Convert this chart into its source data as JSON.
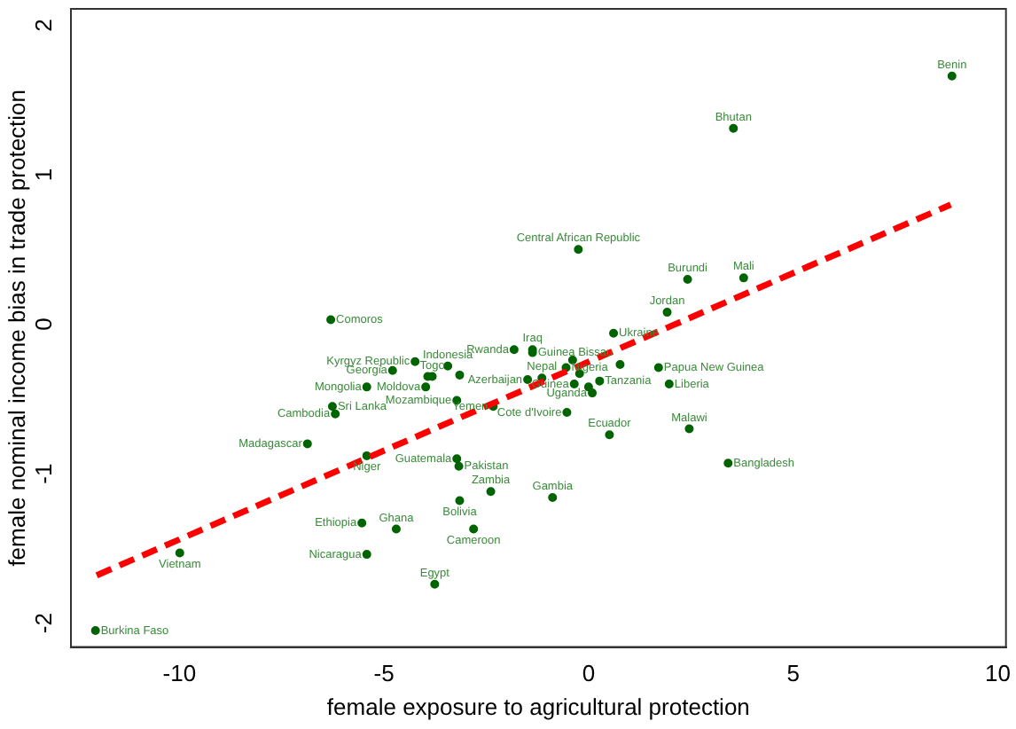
{
  "chart_data": {
    "type": "scatter",
    "xlabel": "female exposure to agricultural protection",
    "ylabel": "female nominal income bias in trade protection",
    "xlim": [
      -12.65,
      10.2
    ],
    "ylim": [
      -2.16,
      2.11
    ],
    "xticks": [
      -10,
      -5,
      0,
      5,
      10
    ],
    "yticks": [
      -2,
      -1,
      0,
      1,
      2
    ],
    "grid": false,
    "legend": false,
    "marker": "circle",
    "series": [
      {
        "type": "scatter",
        "color": "#006400",
        "x": [
          -12.05,
          -9.99,
          -6.3,
          -4.24,
          -4.79,
          -5.42,
          -6.26,
          -6.19,
          -6.87,
          -5.42,
          -5.54,
          -4.7,
          -5.42,
          -3.44,
          -3.82,
          -3.98,
          -3.22,
          -1.82,
          -1.37,
          -1.37,
          -1.14,
          -1.49,
          -2.33,
          -0.53,
          -0.55,
          -0.35,
          0.09,
          0.27,
          0.61,
          1.92,
          2.42,
          3.79,
          1.71,
          1.97,
          0.51,
          2.46,
          3.41,
          -3.22,
          -3.17,
          -2.39,
          -0.88,
          -3.15,
          -2.81,
          -3.76,
          8.88,
          3.54,
          -0.25,
          -3.93,
          -3.15,
          -0.39,
          -0.22,
          0.0,
          0.77
        ],
        "values": [
          -2.05,
          -1.53,
          0.03,
          -0.25,
          -0.31,
          -0.42,
          -0.55,
          -0.6,
          -0.8,
          -0.88,
          -1.33,
          -1.37,
          -1.54,
          -0.28,
          -0.35,
          -0.42,
          -0.51,
          -0.17,
          -0.17,
          -0.19,
          -0.36,
          -0.37,
          -0.55,
          -0.59,
          -0.29,
          -0.4,
          -0.46,
          -0.38,
          -0.06,
          0.08,
          0.3,
          0.31,
          -0.29,
          -0.4,
          -0.74,
          -0.7,
          -0.93,
          -0.9,
          -0.95,
          -1.12,
          -1.16,
          -1.18,
          -1.37,
          -1.74,
          1.66,
          1.31,
          0.5,
          -0.35,
          -0.34,
          -0.24,
          -0.33,
          -0.42,
          -0.27
        ]
      },
      {
        "type": "line",
        "color": "#ff0000",
        "line_style": "dashed",
        "marker": "none",
        "x": [
          -12.02,
          8.85
        ],
        "values": [
          -1.68,
          0.8
        ]
      }
    ],
    "annotations": [
      {
        "text": "Burkina Faso",
        "x": -12.05,
        "y": -2.05
      },
      {
        "text": "Vietnam",
        "x": -9.99,
        "y": -1.53
      },
      {
        "text": "Comoros",
        "x": -6.3,
        "y": 0.03
      },
      {
        "text": "Kyrgyz Republic",
        "x": -4.24,
        "y": -0.25
      },
      {
        "text": "Georgia",
        "x": -4.79,
        "y": -0.31
      },
      {
        "text": "Mongolia",
        "x": -5.42,
        "y": -0.42
      },
      {
        "text": "Sri Lanka",
        "x": -6.26,
        "y": -0.55
      },
      {
        "text": "Cambodia",
        "x": -6.19,
        "y": -0.6
      },
      {
        "text": "Madagascar",
        "x": -6.87,
        "y": -0.8
      },
      {
        "text": "Niger",
        "x": -5.42,
        "y": -0.88
      },
      {
        "text": "Ethiopia",
        "x": -5.54,
        "y": -1.33
      },
      {
        "text": "Ghana",
        "x": -4.7,
        "y": -1.37
      },
      {
        "text": "Nicaragua",
        "x": -5.42,
        "y": -1.54
      },
      {
        "text": "Indonesia",
        "x": -3.44,
        "y": -0.28
      },
      {
        "text": "Togo",
        "x": -3.82,
        "y": -0.35
      },
      {
        "text": "Moldova",
        "x": -3.98,
        "y": -0.42
      },
      {
        "text": "Mozambique",
        "x": -3.22,
        "y": -0.51
      },
      {
        "text": "Rwanda",
        "x": -1.82,
        "y": -0.17
      },
      {
        "text": "Iraq",
        "x": -1.37,
        "y": -0.17
      },
      {
        "text": "Guinea Bissau",
        "x": -1.37,
        "y": -0.19
      },
      {
        "text": "Nepal",
        "x": -1.14,
        "y": -0.36
      },
      {
        "text": "Azerbaijan",
        "x": -1.49,
        "y": -0.37
      },
      {
        "text": "Yemen",
        "x": -2.33,
        "y": -0.55
      },
      {
        "text": "Cote d'Ivoire",
        "x": -0.53,
        "y": -0.59
      },
      {
        "text": "Nigeria",
        "x": -0.55,
        "y": -0.29
      },
      {
        "text": "Guinea",
        "x": -0.35,
        "y": -0.4
      },
      {
        "text": "Uganda",
        "x": 0.09,
        "y": -0.46
      },
      {
        "text": "Tanzania",
        "x": 0.27,
        "y": -0.38
      },
      {
        "text": "Ukraine",
        "x": 0.61,
        "y": -0.06
      },
      {
        "text": "Jordan",
        "x": 1.92,
        "y": 0.08
      },
      {
        "text": "Burundi",
        "x": 2.42,
        "y": 0.3
      },
      {
        "text": "Mali",
        "x": 3.79,
        "y": 0.31
      },
      {
        "text": "Papua New Guinea",
        "x": 1.71,
        "y": -0.29
      },
      {
        "text": "Liberia",
        "x": 1.97,
        "y": -0.4
      },
      {
        "text": "Ecuador",
        "x": 0.51,
        "y": -0.74
      },
      {
        "text": "Malawi",
        "x": 2.46,
        "y": -0.7
      },
      {
        "text": "Bangladesh",
        "x": 3.41,
        "y": -0.93
      },
      {
        "text": "Guatemala",
        "x": -3.22,
        "y": -0.9
      },
      {
        "text": "Pakistan",
        "x": -3.17,
        "y": -0.95
      },
      {
        "text": "Zambia",
        "x": -2.39,
        "y": -1.12
      },
      {
        "text": "Gambia",
        "x": -0.88,
        "y": -1.16
      },
      {
        "text": "Bolivia",
        "x": -3.15,
        "y": -1.18
      },
      {
        "text": "Cameroon",
        "x": -2.81,
        "y": -1.37
      },
      {
        "text": "Egypt",
        "x": -3.76,
        "y": -1.74
      },
      {
        "text": "Benin",
        "x": 8.88,
        "y": 1.66
      },
      {
        "text": "Bhutan",
        "x": 3.54,
        "y": 1.31
      },
      {
        "text": "Central African Republic",
        "x": -0.25,
        "y": 0.5
      }
    ]
  }
}
